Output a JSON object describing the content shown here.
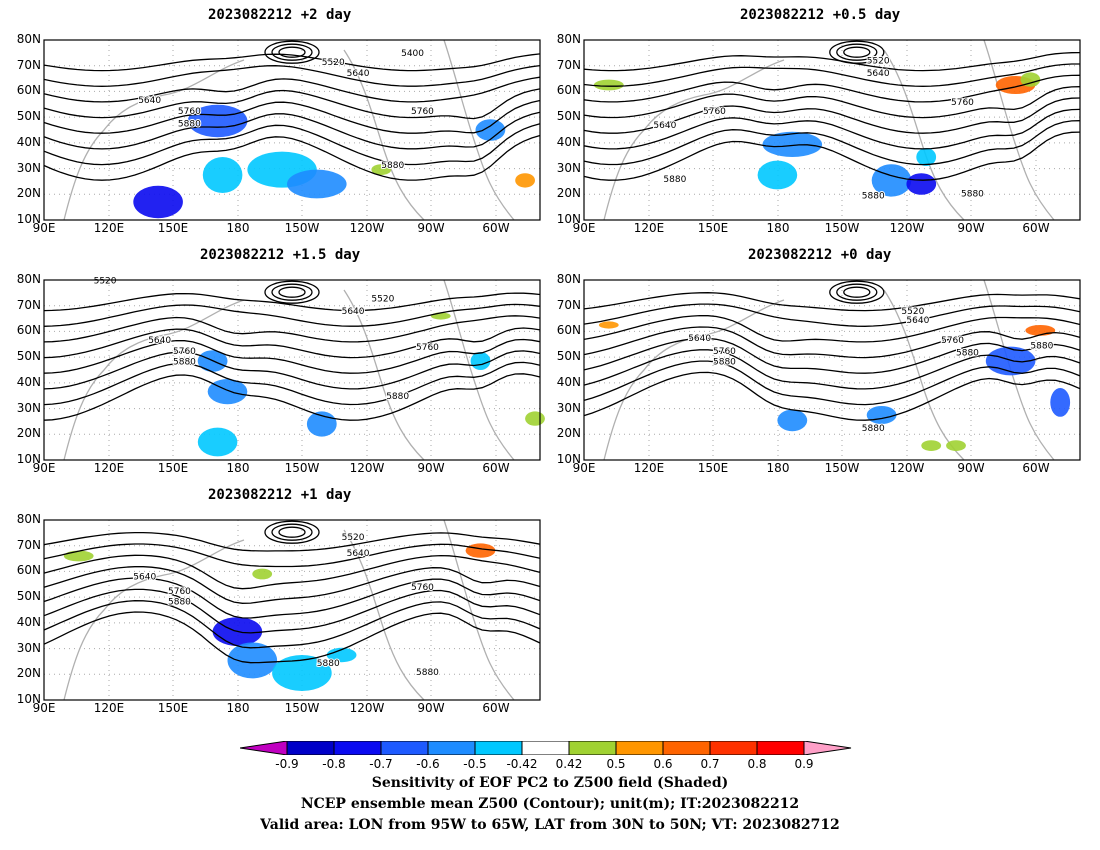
{
  "panels": [
    {
      "title": "2023082212 +2 day",
      "contour_labels": [
        "5400",
        "5520",
        "5640",
        "5640",
        "5760",
        "5760",
        "5880",
        "5880"
      ]
    },
    {
      "title": "2023082212 +0.5 day",
      "contour_labels": [
        "5520",
        "5640",
        "5640",
        "5760",
        "5760",
        "5880",
        "5880",
        "5880"
      ]
    },
    {
      "title": "2023082212 +1.5 day",
      "contour_labels": [
        "5520",
        "5520",
        "5640",
        "5640",
        "5760",
        "5760",
        "5880",
        "5880"
      ]
    },
    {
      "title": "2023082212 +0 day",
      "contour_labels": [
        "5520",
        "5640",
        "5640",
        "5760",
        "5760",
        "5880",
        "5880",
        "5880",
        "5880"
      ]
    },
    {
      "title": "2023082212 +1 day",
      "contour_labels": [
        "5520",
        "5640",
        "5640",
        "5760",
        "5760",
        "5880",
        "5880",
        "5880"
      ]
    }
  ],
  "axes": {
    "lat_ticks": [
      "80N",
      "70N",
      "60N",
      "50N",
      "40N",
      "30N",
      "20N",
      "10N"
    ],
    "lon_ticks": [
      "90E",
      "120E",
      "150E",
      "180",
      "150W",
      "120W",
      "90W",
      "60W"
    ],
    "lat_range": [
      10,
      80
    ],
    "lon_range": [
      90,
      318
    ]
  },
  "colorbar": {
    "labels": [
      "-0.9",
      "-0.8",
      "-0.7",
      "-0.6",
      "-0.5",
      "-0.42",
      "0.42",
      "0.5",
      "0.6",
      "0.7",
      "0.8",
      "0.9"
    ],
    "colors": [
      "#c000c0",
      "#0000c8",
      "#0a0af0",
      "#1e5aff",
      "#1e8cff",
      "#00c8ff",
      "#ffffff",
      "#a0d232",
      "#ff9600",
      "#ff6400",
      "#ff3200",
      "#ff0000",
      "#ffa0c8"
    ]
  },
  "captions": {
    "line1": "Sensitivity of EOF PC2 to Z500 field (Shaded)",
    "line2": "NCEP ensemble mean Z500 (Contour); unit(m); IT:2023082212",
    "line3": "Valid area: LON from 95W to 65W, LAT from 30N to 50N; VT: 2023082712"
  }
}
